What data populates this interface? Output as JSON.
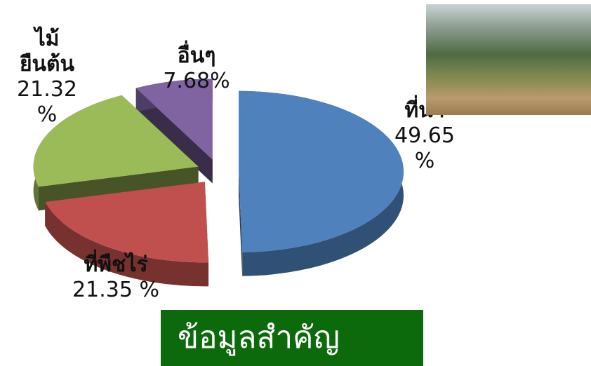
{
  "chart_data": {
    "type": "pie",
    "categories": [
      "ที่นา",
      "ที่พืชไร่",
      "ไม้ยืนต้น",
      "อื่นๆ"
    ],
    "values": [
      49.65,
      21.35,
      21.32,
      7.68
    ],
    "value_labels": [
      "49.65 %",
      "21.35 %",
      "21.32 %",
      "7.68%"
    ],
    "colors": [
      "#4f81bd",
      "#c0504d",
      "#9bbb59",
      "#8064a2"
    ]
  },
  "banner": "ข้อมูลสำคัญ"
}
